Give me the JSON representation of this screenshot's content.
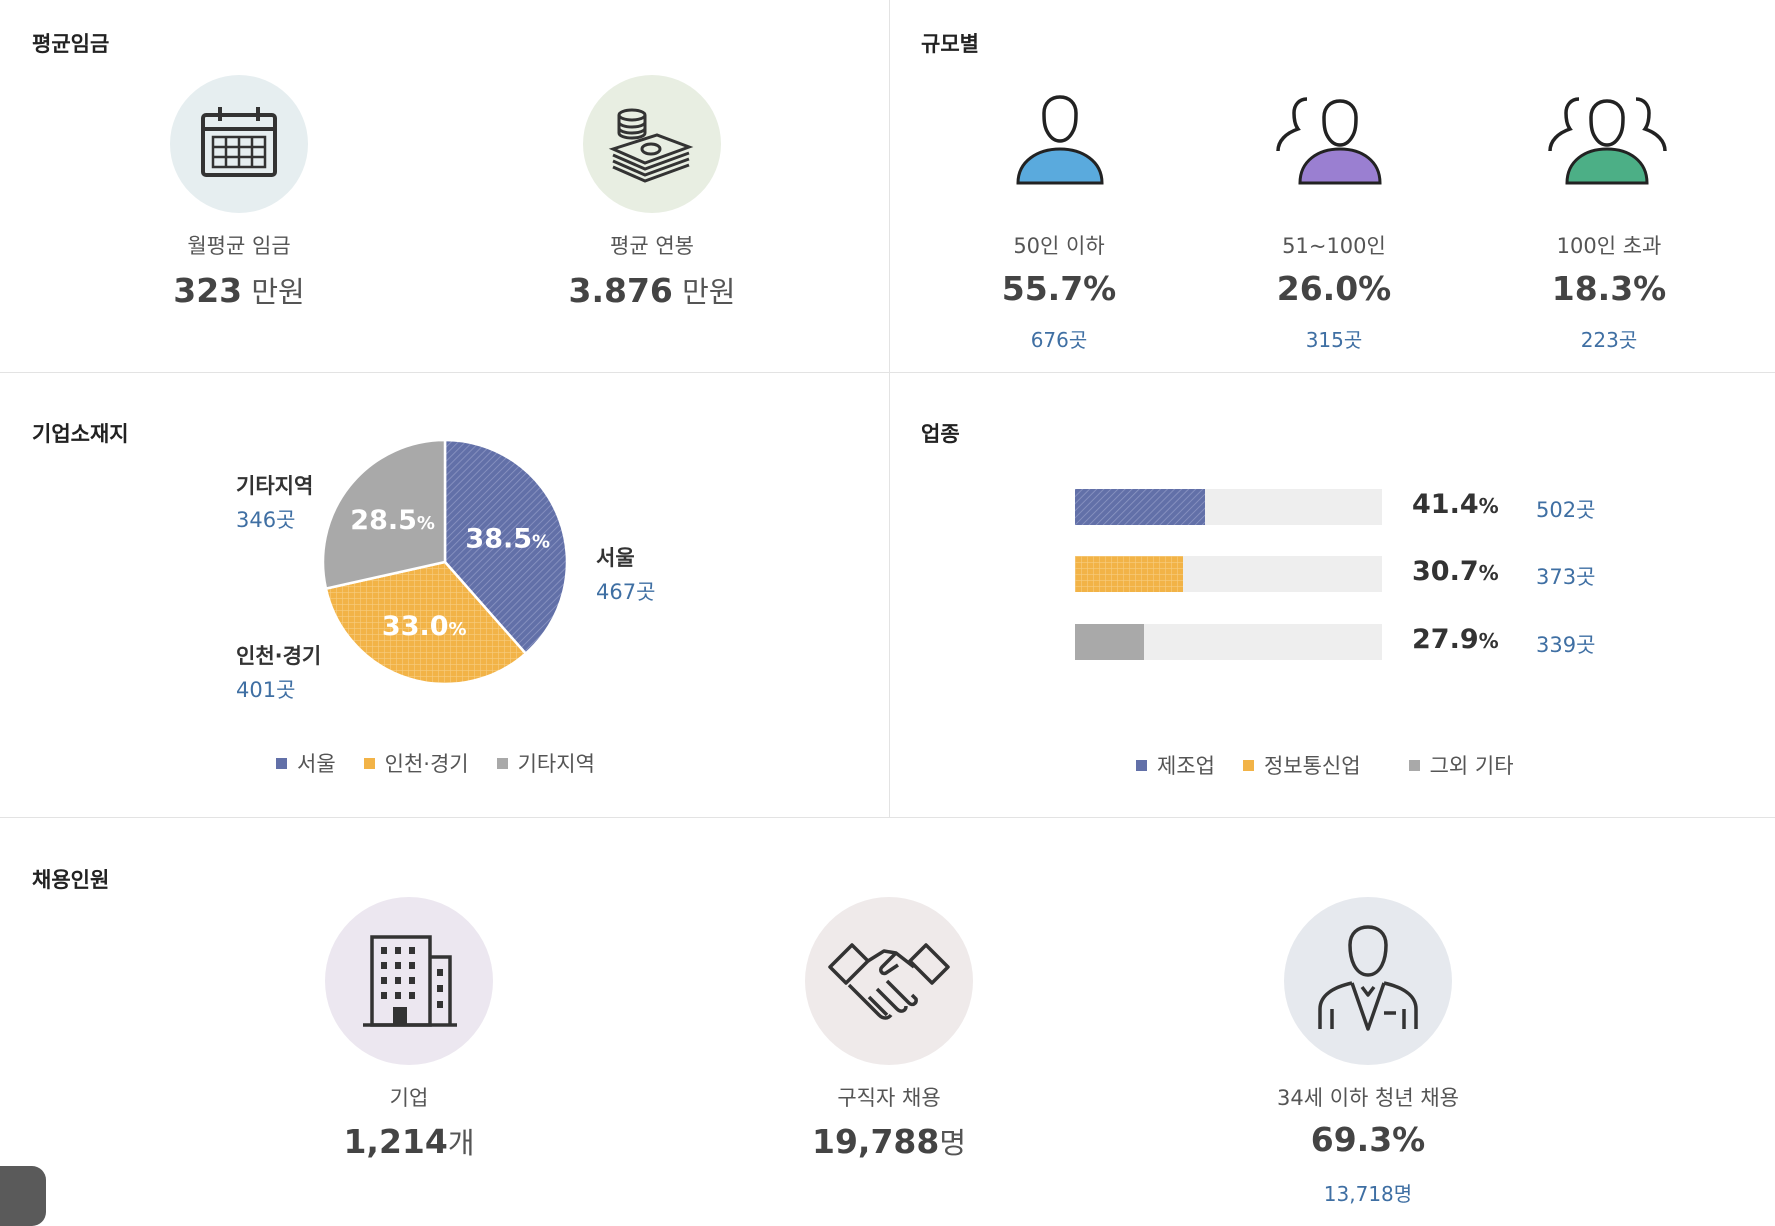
{
  "avg_wage": {
    "title": "평균임금",
    "items": [
      {
        "icon": "calendar-icon",
        "label": "월평균 임금",
        "value": "323",
        "unit": " 만원"
      },
      {
        "icon": "money-stack-icon",
        "label": "평균 연봉",
        "value": "3.876",
        "unit": " 만원"
      }
    ]
  },
  "size": {
    "title": "규모별",
    "items": [
      {
        "icon": "single-person-icon",
        "label": "50인 이하",
        "pct": "55.7%",
        "count": "676곳",
        "color": "#5aaadd"
      },
      {
        "icon": "two-persons-icon",
        "label": "51~100인",
        "pct": "26.0%",
        "count": "315곳",
        "color": "#9a7fd1"
      },
      {
        "icon": "three-persons-icon",
        "label": "100인 초과",
        "pct": "18.3%",
        "count": "223곳",
        "color": "#4caf86"
      }
    ]
  },
  "location": {
    "title": "기업소재지",
    "labels": [
      {
        "name": "서울",
        "count": "467곳"
      },
      {
        "name": "인천·경기",
        "count": "401곳"
      },
      {
        "name": "기타지역",
        "count": "346곳"
      }
    ],
    "pie_texts": [
      "38.5",
      "33.0",
      "28.5"
    ],
    "pct_sign": "%",
    "legend": [
      "서울",
      "인천·경기",
      "기타지역"
    ]
  },
  "industry": {
    "title": "업종",
    "rows": [
      {
        "pct": "41.4",
        "count": "502곳"
      },
      {
        "pct": "30.7",
        "count": "373곳"
      },
      {
        "pct": "27.9",
        "count": "339곳"
      }
    ],
    "pct_sign": "%",
    "legend": [
      "제조업",
      "정보통신업",
      "그외 기타"
    ]
  },
  "hiring": {
    "title": "채용인원",
    "items": [
      {
        "icon": "building-icon",
        "label": "기업",
        "value": "1,214",
        "unit": "개"
      },
      {
        "icon": "handshake-icon",
        "label": "구직자 채용",
        "value": "19,788",
        "unit": "명"
      },
      {
        "icon": "businessman-icon",
        "label": "34세 이하 청년 채용",
        "value": "69.3%",
        "unit": "",
        "sub": "13,718명"
      }
    ]
  },
  "colors": {
    "blue": "#6270a8",
    "orange": "#f2b347",
    "gray": "#a9a9a9",
    "link": "#3f6fa3"
  },
  "chart_data": [
    {
      "type": "pie",
      "title": "기업소재지",
      "categories": [
        "서울",
        "인천·경기",
        "기타지역"
      ],
      "values": [
        38.5,
        33.0,
        28.5
      ],
      "counts": [
        467,
        401,
        346
      ],
      "unit": "%"
    },
    {
      "type": "bar",
      "title": "업종",
      "categories": [
        "제조업",
        "정보통신업",
        "그외 기타"
      ],
      "values": [
        41.4,
        30.7,
        27.9
      ],
      "counts": [
        502,
        373,
        339
      ],
      "ylim": [
        0,
        100
      ],
      "unit": "%"
    }
  ]
}
